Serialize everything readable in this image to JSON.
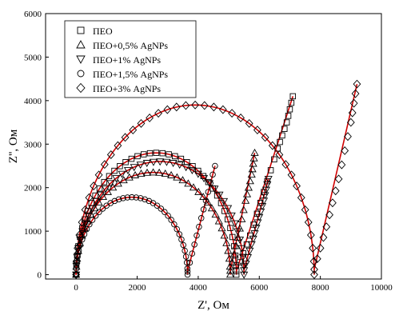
{
  "chart_data": {
    "type": "scatter",
    "xlabel": "Z', Ом",
    "ylabel": "Z'', Ом",
    "xlim": [
      -1000,
      10000
    ],
    "ylim": [
      -100,
      6000
    ],
    "xticks": [
      0,
      2000,
      4000,
      6000,
      8000,
      10000
    ],
    "yticks": [
      0,
      1000,
      2000,
      3000,
      4000,
      5000,
      6000
    ],
    "x_tick_labels": [
      "0",
      "2000",
      "4000",
      "6000",
      "8000",
      "10000"
    ],
    "y_tick_labels": [
      "0",
      "1000",
      "2000",
      "3000",
      "4000",
      "5000",
      "6000"
    ],
    "grid": false,
    "legend_position": "top-left",
    "fit_color": "#d00000",
    "series": [
      {
        "name": "ПЕО",
        "marker": "square",
        "arc": {
          "x0": 0,
          "x1": 5250,
          "height": 2800
        },
        "spur": [
          [
            5250,
            80
          ],
          [
            5700,
            900
          ],
          [
            6150,
            1900
          ],
          [
            6600,
            2900
          ],
          [
            6900,
            3500
          ],
          [
            7100,
            4100
          ]
        ]
      },
      {
        "name": "ПЕО+0,5% AgNPs",
        "marker": "triangle-up",
        "arc": {
          "x0": 0,
          "x1": 5050,
          "height": 2350
        },
        "spur": [
          [
            5050,
            90
          ],
          [
            5300,
            850
          ],
          [
            5550,
            1700
          ],
          [
            5750,
            2300
          ],
          [
            5850,
            2800
          ]
        ]
      },
      {
        "name": "ПЕО+1% AgNPs",
        "marker": "triangle-down",
        "arc": {
          "x0": 0,
          "x1": 5500,
          "height": 2600
        },
        "spur": [
          [
            5500,
            100
          ],
          [
            5750,
            700
          ],
          [
            5950,
            1200
          ],
          [
            6150,
            1700
          ],
          [
            6300,
            2200
          ]
        ]
      },
      {
        "name": "ПЕО+1,5% AgNPs",
        "marker": "circle",
        "arc": {
          "x0": 0,
          "x1": 3650,
          "height": 1780
        },
        "spur": [
          [
            3650,
            70
          ],
          [
            3950,
            900
          ],
          [
            4250,
            1700
          ],
          [
            4550,
            2500
          ]
        ]
      },
      {
        "name": "ПЕО+3% AgNPs",
        "marker": "diamond",
        "arc": {
          "x0": 0,
          "x1": 7800,
          "height": 3900
        },
        "spur": [
          [
            7800,
            120
          ],
          [
            8200,
            1100
          ],
          [
            8600,
            2200
          ],
          [
            9000,
            3500
          ],
          [
            9200,
            4380
          ]
        ]
      }
    ]
  }
}
